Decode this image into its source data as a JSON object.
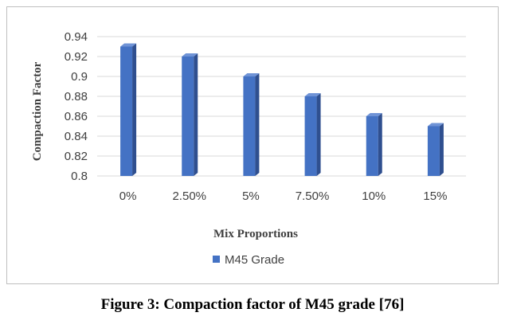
{
  "caption": "Figure 3: Compaction factor of M45 grade [76]",
  "chart_data": {
    "type": "bar",
    "title": "",
    "xlabel": "Mix Proportions",
    "ylabel": "Compaction Factor",
    "categories": [
      "0%",
      "2.50%",
      "5%",
      "7.50%",
      "10%",
      "15%"
    ],
    "series": [
      {
        "name": "M45 Grade",
        "values": [
          0.93,
          0.92,
          0.9,
          0.88,
          0.86,
          0.85
        ]
      }
    ],
    "ylim": [
      0.8,
      0.94
    ],
    "yticks": [
      "0.8",
      "0.82",
      "0.84",
      "0.86",
      "0.88",
      "0.9",
      "0.92",
      "0.94"
    ],
    "grid": true,
    "legend": "bottom",
    "bar_style": "3d-column",
    "colors": {
      "front": "#4472c4",
      "side": "#2f4f8f",
      "top": "#6f93d6",
      "grid": "#d9d9d9"
    }
  }
}
